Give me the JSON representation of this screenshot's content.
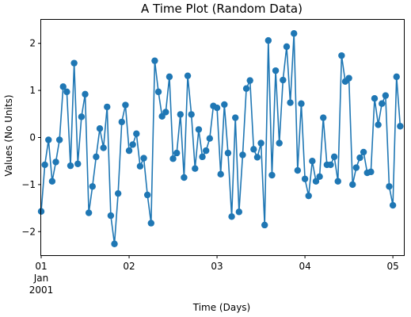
{
  "chart_data": {
    "type": "line",
    "title": "A Time Plot (Random Data)",
    "xlabel": "Time (Days)",
    "ylabel": "Values (No Units)",
    "ylim": [
      -2.5,
      2.5
    ],
    "xlim": [
      "2001-01-01 00:00",
      "2001-01-05 03:00"
    ],
    "grid": false,
    "legend": "none",
    "color": "#1f77b4",
    "marker": "circle",
    "x_ticks": [
      {
        "value": "2001-01-01",
        "label": "01",
        "sublabel": "Jan",
        "sublabel2": "2001"
      },
      {
        "value": "2001-01-02",
        "label": "02"
      },
      {
        "value": "2001-01-03",
        "label": "03"
      },
      {
        "value": "2001-01-04",
        "label": "04"
      },
      {
        "value": "2001-01-05",
        "label": "05"
      }
    ],
    "y_ticks": [
      {
        "value": -2,
        "label": "−2"
      },
      {
        "value": -1,
        "label": "−1"
      },
      {
        "value": 0,
        "label": "0"
      },
      {
        "value": 1,
        "label": "1"
      },
      {
        "value": 2,
        "label": "2"
      }
    ],
    "x_start": "2001-01-01 00:00",
    "x_step": "1 hour",
    "values": [
      -1.57,
      -0.58,
      -0.05,
      -0.93,
      -0.52,
      -0.05,
      1.08,
      0.97,
      -0.6,
      1.58,
      -0.56,
      0.44,
      0.92,
      -1.6,
      -1.04,
      -0.41,
      0.19,
      -0.22,
      0.65,
      -1.66,
      -2.26,
      -1.19,
      0.33,
      0.69,
      -0.28,
      -0.15,
      0.08,
      -0.61,
      -0.44,
      -1.22,
      -1.82,
      1.63,
      0.97,
      0.45,
      0.54,
      1.29,
      -0.45,
      -0.33,
      0.49,
      -0.85,
      1.31,
      0.49,
      -0.66,
      0.17,
      -0.41,
      -0.28,
      -0.02,
      0.67,
      0.63,
      -0.78,
      0.7,
      -0.33,
      -1.68,
      0.42,
      -1.58,
      -0.37,
      1.04,
      1.21,
      -0.25,
      -0.42,
      -0.12,
      -1.86,
      2.06,
      -0.8,
      1.42,
      -0.12,
      1.22,
      1.93,
      0.74,
      2.21,
      -0.7,
      0.72,
      -0.88,
      -1.24,
      -0.5,
      -0.93,
      -0.83,
      0.42,
      -0.58,
      -0.58,
      -0.41,
      -0.93,
      1.74,
      1.19,
      1.26,
      -1.0,
      -0.64,
      -0.43,
      -0.31,
      -0.75,
      -0.73,
      0.83,
      0.27,
      0.72,
      0.89,
      -1.04,
      -1.44,
      1.29,
      0.24
    ]
  }
}
